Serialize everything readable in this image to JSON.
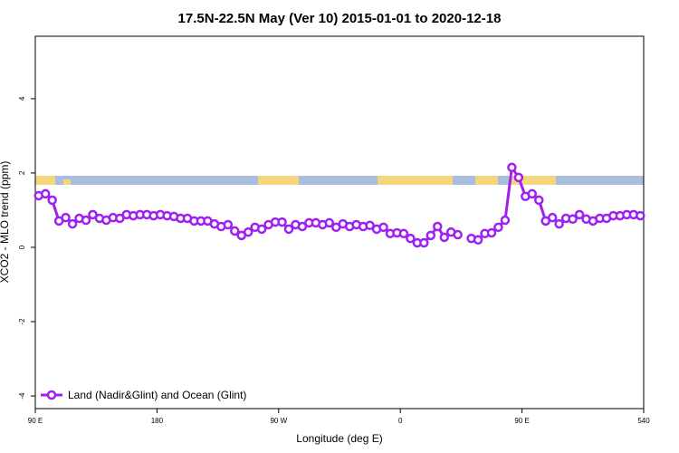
{
  "chart_data": {
    "type": "line",
    "title": "17.5N-22.5N May (Ver 10)   2015-01-01 to 2020-12-18",
    "x_label": "Longitude (deg E)",
    "y_label": "XCO2 - MLO trend (ppm)",
    "xlim": [
      90,
      540
    ],
    "ylim": [
      -4.34,
      5.68
    ],
    "xticks": [
      {
        "value": 90,
        "label": "90 E"
      },
      180,
      {
        "value": 270,
        "label": "90 W"
      },
      {
        "value": 360,
        "label": "0"
      },
      {
        "value": 450,
        "label": "90 E"
      },
      540
    ],
    "yticks": [
      -4,
      -2,
      0,
      2,
      4
    ],
    "legend": "bottom-left",
    "x": [
      92.5,
      97.5,
      102.5,
      107.5,
      112.5,
      117.5,
      122.5,
      127.5,
      132.5,
      137.5,
      142.5,
      147.5,
      152.5,
      157.5,
      162.5,
      167.5,
      172.5,
      177.5,
      182.5,
      187.5,
      192.5,
      197.5,
      202.5,
      207.5,
      212.5,
      217.5,
      222.5,
      227.5,
      232.5,
      237.5,
      242.5,
      247.5,
      252.5,
      257.5,
      262.5,
      267.5,
      272.5,
      277.5,
      282.5,
      287.5,
      292.5,
      297.5,
      302.5,
      307.5,
      312.5,
      317.5,
      322.5,
      327.5,
      332.5,
      337.5,
      342.5,
      347.5,
      352.5,
      357.5,
      362.5,
      367.5,
      372.5,
      377.5,
      382.5,
      387.5,
      392.5,
      397.5,
      402.5,
      407.5,
      412.5,
      417.5,
      422.5,
      427.5,
      432.5,
      437.5,
      442.5,
      447.5,
      452.5,
      457.5,
      462.5,
      467.5,
      472.5,
      477.5,
      482.5,
      487.5,
      492.5,
      497.5,
      502.5,
      507.5,
      512.5,
      517.5,
      522.5,
      527.5,
      532.5,
      537.5
    ],
    "series": [
      {
        "name": "Land (Nadir&Glint) and Ocean (Glint)",
        "color": "#a020f0",
        "values": [
          1.39,
          1.44,
          1.27,
          0.71,
          0.8,
          0.63,
          0.78,
          0.73,
          0.88,
          0.78,
          0.73,
          0.8,
          0.78,
          0.88,
          0.85,
          0.88,
          0.88,
          0.85,
          0.88,
          0.85,
          0.83,
          0.78,
          0.78,
          0.71,
          0.71,
          0.71,
          0.63,
          0.56,
          0.61,
          0.44,
          0.32,
          0.41,
          0.54,
          0.49,
          0.61,
          0.68,
          0.68,
          0.49,
          0.61,
          0.56,
          0.66,
          0.66,
          0.61,
          0.66,
          0.54,
          0.63,
          0.56,
          0.61,
          0.56,
          0.59,
          0.49,
          0.54,
          0.37,
          0.39,
          0.37,
          0.24,
          0.12,
          0.12,
          0.32,
          0.56,
          0.27,
          0.41,
          0.34,
          null,
          0.24,
          0.2,
          0.37,
          0.39,
          0.54,
          0.73,
          2.15,
          1.88,
          1.37,
          1.44,
          1.27,
          0.71,
          0.8,
          0.63,
          0.78,
          0.76,
          0.88,
          0.76,
          0.71,
          0.78,
          0.78,
          0.85,
          0.85,
          0.88,
          0.88,
          0.85
        ]
      }
    ]
  }
}
